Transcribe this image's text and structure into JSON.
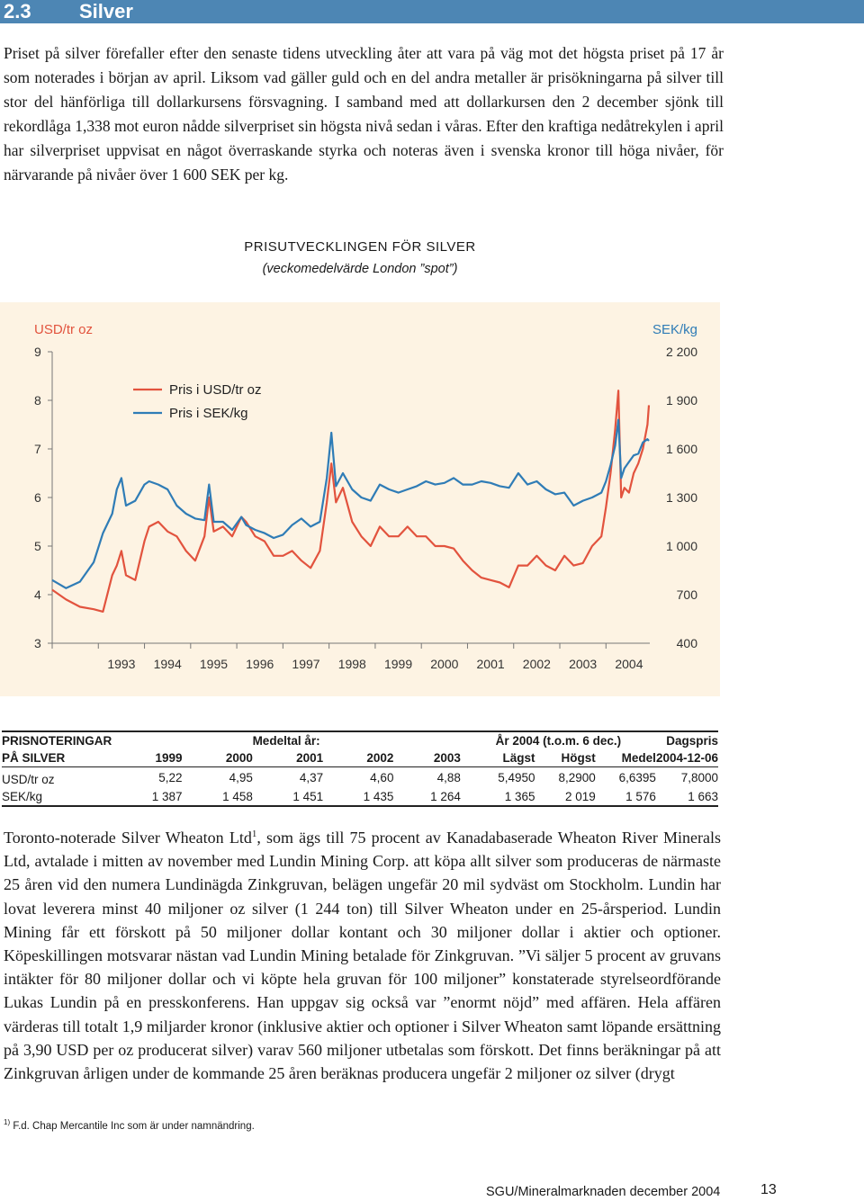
{
  "section": {
    "number": "2.3",
    "title": "Silver",
    "bar_color": "#4d86b4"
  },
  "intro_paragraph": "Priset på silver förefaller efter den senaste tidens utveckling åter att vara på väg mot det högsta priset på 17 år som noterades i början av april. Liksom vad gäller guld och en del andra metaller är prisökningarna på silver till stor del hänförliga till dollarkursens försvagning. I samband med att dollarkursen den 2 december sjönk till rekordlåga 1,338 mot euron nådde silverpriset sin högsta nivå sedan i våras. Efter den kraftiga nedåtrekylen i april har silverpriset uppvisat en något överraskande styrka och noteras även i svenska kronor till höga nivåer, för närvarande på nivåer över 1 600 SEK per kg.",
  "chart_data": {
    "type": "line",
    "title": "PRISUTVECKLINGEN FÖR SILVER",
    "subtitle": "(veckomedelvärde London ”spot”)",
    "ylabel_left": "USD/tr oz",
    "ylabel_right": "SEK/kg",
    "left_ticks": [
      "9",
      "8",
      "7",
      "6",
      "5",
      "4",
      "3"
    ],
    "right_ticks": [
      "2 200",
      "1 900",
      "1 600",
      "1 300",
      "1 000",
      "700",
      "400"
    ],
    "ylim_left": [
      3,
      9
    ],
    "ylim_right": [
      400,
      2200
    ],
    "x_ticks": [
      "1993",
      "1994",
      "1995",
      "1996",
      "1997",
      "1998",
      "1999",
      "2000",
      "2001",
      "2002",
      "2003",
      "2004"
    ],
    "xlim": [
      1992.0,
      2004.95
    ],
    "background": "#fdf3e3",
    "grid": false,
    "legend_position": "top-left",
    "series": [
      {
        "name": "Pris i USD/tr oz",
        "color": "#e2533e",
        "axis": "left",
        "x": [
          1992.0,
          1992.3,
          1992.6,
          1992.9,
          1993.1,
          1993.3,
          1993.4,
          1993.5,
          1993.6,
          1993.8,
          1994.0,
          1994.1,
          1994.3,
          1994.5,
          1994.7,
          1994.9,
          1995.1,
          1995.3,
          1995.4,
          1995.5,
          1995.7,
          1995.9,
          1996.1,
          1996.2,
          1996.4,
          1996.6,
          1996.8,
          1997.0,
          1997.2,
          1997.4,
          1997.6,
          1997.8,
          1997.95,
          1998.05,
          1998.15,
          1998.3,
          1998.5,
          1998.7,
          1998.9,
          1999.1,
          1999.3,
          1999.5,
          1999.7,
          1999.9,
          2000.1,
          2000.3,
          2000.5,
          2000.7,
          2000.9,
          2001.1,
          2001.3,
          2001.5,
          2001.7,
          2001.9,
          2002.1,
          2002.3,
          2002.5,
          2002.7,
          2002.9,
          2003.1,
          2003.3,
          2003.5,
          2003.7,
          2003.9,
          2004.0,
          2004.1,
          2004.2,
          2004.27,
          2004.33,
          2004.4,
          2004.5,
          2004.6,
          2004.7,
          2004.8,
          2004.9,
          2004.93
        ],
        "y": [
          4.1,
          3.9,
          3.75,
          3.7,
          3.65,
          4.4,
          4.6,
          4.9,
          4.4,
          4.3,
          5.1,
          5.4,
          5.5,
          5.3,
          5.2,
          4.9,
          4.7,
          5.2,
          6.0,
          5.3,
          5.4,
          5.2,
          5.6,
          5.5,
          5.2,
          5.1,
          4.8,
          4.8,
          4.9,
          4.7,
          4.55,
          4.9,
          5.9,
          6.7,
          5.9,
          6.2,
          5.5,
          5.2,
          5.0,
          5.4,
          5.2,
          5.2,
          5.4,
          5.2,
          5.2,
          5.0,
          5.0,
          4.95,
          4.7,
          4.5,
          4.35,
          4.3,
          4.25,
          4.15,
          4.6,
          4.6,
          4.8,
          4.6,
          4.5,
          4.8,
          4.6,
          4.65,
          5.0,
          5.2,
          5.8,
          6.5,
          7.4,
          8.2,
          6.0,
          6.2,
          6.1,
          6.5,
          6.7,
          7.0,
          7.5,
          7.9
        ]
      },
      {
        "name": "Pris i SEK/kg",
        "color": "#2f7cb6",
        "axis": "right",
        "x": [
          1992.0,
          1992.3,
          1992.6,
          1992.9,
          1993.1,
          1993.3,
          1993.4,
          1993.5,
          1993.6,
          1993.8,
          1994.0,
          1994.1,
          1994.3,
          1994.5,
          1994.7,
          1994.9,
          1995.1,
          1995.3,
          1995.4,
          1995.5,
          1995.7,
          1995.9,
          1996.1,
          1996.2,
          1996.4,
          1996.6,
          1996.8,
          1997.0,
          1997.2,
          1997.4,
          1997.6,
          1997.8,
          1997.95,
          1998.05,
          1998.15,
          1998.3,
          1998.5,
          1998.7,
          1998.9,
          1999.1,
          1999.3,
          1999.5,
          1999.7,
          1999.9,
          2000.1,
          2000.3,
          2000.5,
          2000.7,
          2000.9,
          2001.1,
          2001.3,
          2001.5,
          2001.7,
          2001.9,
          2002.1,
          2002.3,
          2002.5,
          2002.7,
          2002.9,
          2003.1,
          2003.3,
          2003.5,
          2003.7,
          2003.9,
          2004.0,
          2004.1,
          2004.2,
          2004.27,
          2004.33,
          2004.4,
          2004.5,
          2004.6,
          2004.7,
          2004.8,
          2004.9,
          2004.93
        ],
        "y": [
          790,
          740,
          780,
          900,
          1080,
          1200,
          1350,
          1420,
          1250,
          1280,
          1380,
          1400,
          1380,
          1350,
          1250,
          1200,
          1170,
          1160,
          1380,
          1150,
          1150,
          1100,
          1180,
          1130,
          1100,
          1080,
          1050,
          1070,
          1130,
          1170,
          1120,
          1150,
          1420,
          1700,
          1370,
          1450,
          1350,
          1300,
          1280,
          1380,
          1350,
          1330,
          1350,
          1370,
          1400,
          1380,
          1390,
          1420,
          1380,
          1380,
          1400,
          1390,
          1370,
          1360,
          1450,
          1380,
          1400,
          1350,
          1320,
          1330,
          1250,
          1280,
          1300,
          1330,
          1400,
          1500,
          1620,
          1780,
          1420,
          1480,
          1520,
          1560,
          1570,
          1640,
          1660,
          1650
        ]
      }
    ]
  },
  "table": {
    "header_label_1": "PRISNOTERINGAR",
    "header_label_2": "PÅ SILVER",
    "avg_group": "Medeltal år:",
    "year_group": "År 2004 (t.o.m. 6 dec.)",
    "daily_group": "Dagspris",
    "years": [
      "1999",
      "2000",
      "2001",
      "2002",
      "2003"
    ],
    "year_cols": [
      "Lägst",
      "Högst",
      "Medel"
    ],
    "daily_date": "2004-12-06",
    "rows": [
      {
        "label": "USD/tr oz",
        "values": [
          "5,22",
          "4,95",
          "4,37",
          "4,60",
          "4,88"
        ],
        "low": "5,4950",
        "high": "8,2900",
        "mean": "6,6395",
        "daily": "7,8000"
      },
      {
        "label": "SEK/kg",
        "values": [
          "1 387",
          "1 458",
          "1 451",
          "1 435",
          "1 264"
        ],
        "low": "1 365",
        "high": "2 019",
        "mean": "1 576",
        "daily": "1 663"
      }
    ]
  },
  "body": {
    "part1": "Toronto-noterade Silver Wheaton Ltd",
    "footnote_mark": "1",
    "part2": ", som ägs till 75 procent av Kanadabaserade Wheaton River Minerals Ltd, avtalade i mitten av november med Lundin Mining Corp. att köpa allt silver som produceras de närmaste 25 åren vid den numera Lundinägda Zinkgruvan, belägen ungefär 20 mil sydväst om Stockholm. Lundin har lovat leverera minst 40 miljoner oz silver (1 244 ton) till Silver Wheaton under en 25-årsperiod. Lundin Mining får ett förskott på 50 miljoner dollar kontant och 30 miljoner dollar i aktier och optioner. Köpeskillingen motsvarar nästan vad Lundin Mining betalade för Zinkgruvan. ”Vi säljer 5 procent av gruvans intäkter för 80 miljoner dollar och vi köpte hela gruvan för 100 miljoner” konstaterade styrelseordförande Lukas Lundin på en presskonferens. Han uppgav sig också var ”enormt nöjd” med affären. Hela affären värderas till totalt 1,9 miljarder kronor (inklusive aktier och optioner i Silver Wheaton samt löpande ersättning på 3,90 USD per oz producerat silver) varav 560 miljoner utbetalas som förskott. Det finns beräkningar på att Zinkgruvan årligen under de kommande 25 åren beräknas producera ungefär 2 miljoner oz silver (drygt"
  },
  "footnote": {
    "mark": "1)",
    "text": "F.d. Chap Mercantile Inc som är under namnändring."
  },
  "footer": {
    "source": "SGU/Mineralmarknaden december 2004",
    "page": "13"
  }
}
